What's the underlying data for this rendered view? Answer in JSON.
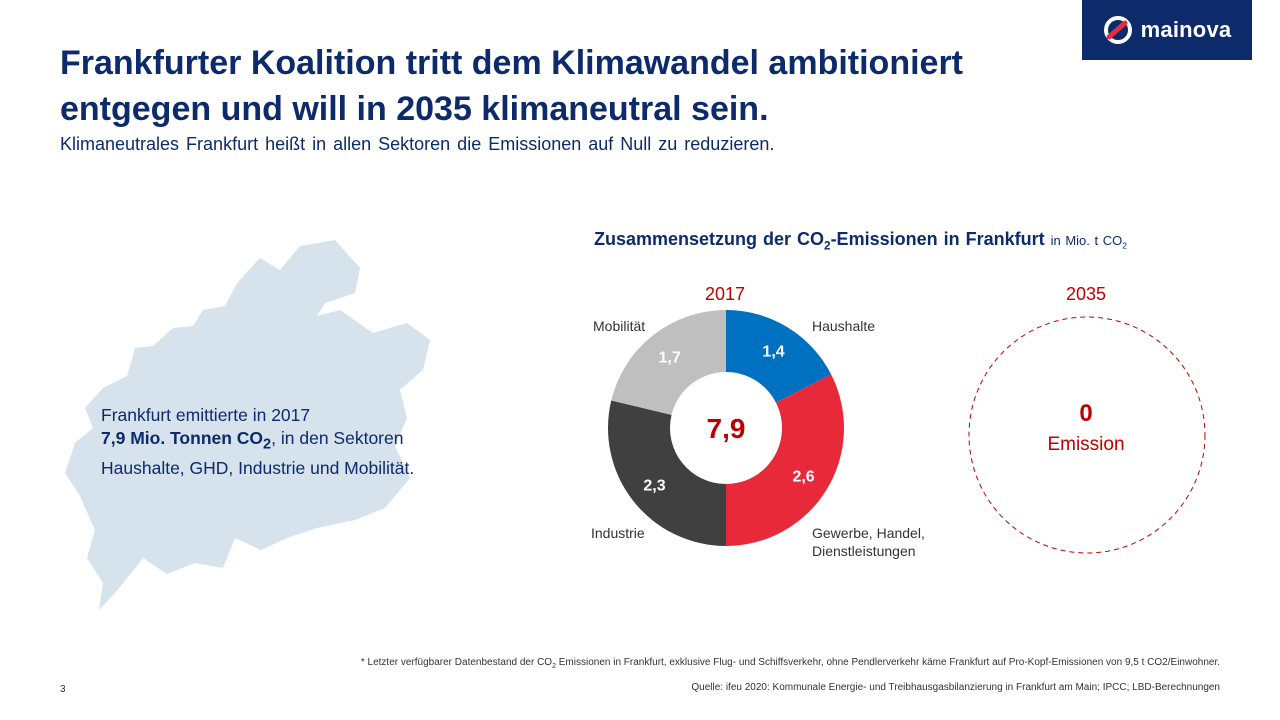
{
  "brand": {
    "name": "mainova",
    "color": "#0d2b6b",
    "accent": "#e62e3a"
  },
  "header": {
    "title": "Frankfurter Koalition tritt dem Klimawandel ambitioniert entgegen und will in 2035 klimaneutral sein.",
    "subtitle": "Klimaneutrales Frankfurt heißt in allen Sektoren die Emissionen auf Null zu reduzieren."
  },
  "map_info": {
    "line1": "Frankfurt emittierte in 2017",
    "bold_main": "7,9 Mio. Tonnen CO",
    "bold_sub": "2",
    "line2_rest": ", in den Sektoren",
    "line3": "Haushalte,  GHD, Industrie und Mobilität.",
    "map_color": "#d6e2ec"
  },
  "chart_heading": {
    "main": "Zusammensetzung der CO",
    "sub": "2",
    "main_rest": "-Emissionen in Frankfurt",
    "unit": "in Mio. t CO",
    "unit_sub": "2"
  },
  "chart_data": [
    {
      "type": "pie",
      "title": "2017",
      "center_total": "7,9",
      "categories": [
        "Haushalte",
        "Gewerbe, Handel, Dienstleistungen",
        "Industrie",
        "Mobilität"
      ],
      "values": [
        1.4,
        2.6,
        2.3,
        1.7
      ],
      "value_labels": [
        "1,4",
        "2,6",
        "2,3",
        "1,7"
      ],
      "colors": [
        "#0070c0",
        "#e8293a",
        "#404040",
        "#bfbfbf"
      ],
      "gewerbe_line1": "Gewerbe, Handel,",
      "gewerbe_line2": "Dienstleistungen"
    },
    {
      "type": "pie",
      "title": "2035",
      "values": [
        0
      ],
      "value_label": "0",
      "label": "Emission"
    }
  ],
  "footnote": {
    "line1_a": "* Letzter verfügbarer Datenbestand der CO",
    "line1_sub": "2",
    "line1_b": " Emissionen  in Frankfurt, exklusive Flug- und Schiffsverkehr, ohne Pendlerverkehr käme Frankfurt auf Pro-Kopf-Emissionen von 9,5 t CO2/Einwohner.",
    "line2": "Quelle: ifeu 2020: Kommunale Energie- und Treibhausgasbilanzierung in Frankfurt am Main; IPCC; LBD-Berechnungen"
  },
  "page_number": "3"
}
